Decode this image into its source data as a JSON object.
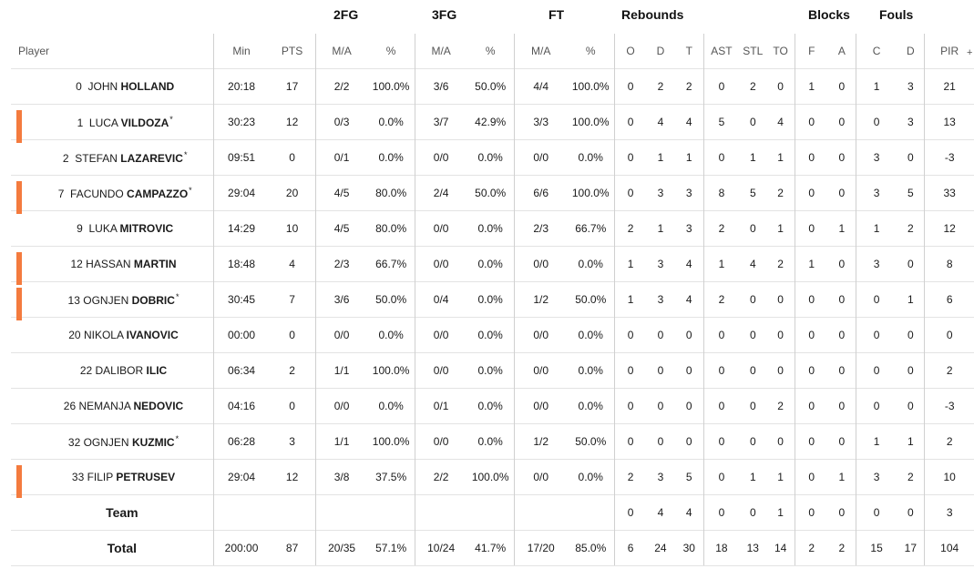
{
  "groups": [
    "2FG",
    "3FG",
    "FT",
    "Rebounds",
    "Blocks",
    "Fouls"
  ],
  "headers": {
    "player": "Player",
    "min": "Min",
    "pts": "PTS",
    "fg2_ma": "M/A",
    "fg2_pct": "%",
    "fg3_ma": "M/A",
    "fg3_pct": "%",
    "ft_ma": "M/A",
    "ft_pct": "%",
    "reb_o": "O",
    "reb_d": "D",
    "reb_t": "T",
    "ast": "AST",
    "stl": "STL",
    "to": "TO",
    "blk_f": "F",
    "blk_a": "A",
    "foul_c": "C",
    "foul_d": "D",
    "pir": "PIR",
    "more": "+"
  },
  "accent_color": "#f47b3e",
  "players": [
    {
      "num": "0",
      "first": "JOHN",
      "last": "HOLLAND",
      "star": "",
      "starter": false,
      "min": "20:18",
      "pts": "17",
      "fg2_ma": "2/2",
      "fg2_pct": "100.0%",
      "fg3_ma": "3/6",
      "fg3_pct": "50.0%",
      "ft_ma": "4/4",
      "ft_pct": "100.0%",
      "reb_o": "0",
      "reb_d": "2",
      "reb_t": "2",
      "ast": "0",
      "stl": "2",
      "to": "0",
      "blk_f": "1",
      "blk_a": "0",
      "foul_c": "1",
      "foul_d": "3",
      "pir": "21"
    },
    {
      "num": "1",
      "first": "LUCA",
      "last": "VILDOZA",
      "star": "*",
      "starter": true,
      "min": "30:23",
      "pts": "12",
      "fg2_ma": "0/3",
      "fg2_pct": "0.0%",
      "fg3_ma": "3/7",
      "fg3_pct": "42.9%",
      "ft_ma": "3/3",
      "ft_pct": "100.0%",
      "reb_o": "0",
      "reb_d": "4",
      "reb_t": "4",
      "ast": "5",
      "stl": "0",
      "to": "4",
      "blk_f": "0",
      "blk_a": "0",
      "foul_c": "0",
      "foul_d": "3",
      "pir": "13"
    },
    {
      "num": "2",
      "first": "STEFAN",
      "last": "LAZAREVIC",
      "star": "*",
      "starter": false,
      "min": "09:51",
      "pts": "0",
      "fg2_ma": "0/1",
      "fg2_pct": "0.0%",
      "fg3_ma": "0/0",
      "fg3_pct": "0.0%",
      "ft_ma": "0/0",
      "ft_pct": "0.0%",
      "reb_o": "0",
      "reb_d": "1",
      "reb_t": "1",
      "ast": "0",
      "stl": "1",
      "to": "1",
      "blk_f": "0",
      "blk_a": "0",
      "foul_c": "3",
      "foul_d": "0",
      "pir": "-3"
    },
    {
      "num": "7",
      "first": "FACUNDO",
      "last": "CAMPAZZO",
      "star": "*",
      "starter": true,
      "min": "29:04",
      "pts": "20",
      "fg2_ma": "4/5",
      "fg2_pct": "80.0%",
      "fg3_ma": "2/4",
      "fg3_pct": "50.0%",
      "ft_ma": "6/6",
      "ft_pct": "100.0%",
      "reb_o": "0",
      "reb_d": "3",
      "reb_t": "3",
      "ast": "8",
      "stl": "5",
      "to": "2",
      "blk_f": "0",
      "blk_a": "0",
      "foul_c": "3",
      "foul_d": "5",
      "pir": "33"
    },
    {
      "num": "9",
      "first": "LUKA",
      "last": "MITROVIC",
      "star": "",
      "starter": false,
      "min": "14:29",
      "pts": "10",
      "fg2_ma": "4/5",
      "fg2_pct": "80.0%",
      "fg3_ma": "0/0",
      "fg3_pct": "0.0%",
      "ft_ma": "2/3",
      "ft_pct": "66.7%",
      "reb_o": "2",
      "reb_d": "1",
      "reb_t": "3",
      "ast": "2",
      "stl": "0",
      "to": "1",
      "blk_f": "0",
      "blk_a": "1",
      "foul_c": "1",
      "foul_d": "2",
      "pir": "12"
    },
    {
      "num": "12",
      "first": "HASSAN",
      "last": "MARTIN",
      "star": "",
      "starter": true,
      "min": "18:48",
      "pts": "4",
      "fg2_ma": "2/3",
      "fg2_pct": "66.7%",
      "fg3_ma": "0/0",
      "fg3_pct": "0.0%",
      "ft_ma": "0/0",
      "ft_pct": "0.0%",
      "reb_o": "1",
      "reb_d": "3",
      "reb_t": "4",
      "ast": "1",
      "stl": "4",
      "to": "2",
      "blk_f": "1",
      "blk_a": "0",
      "foul_c": "3",
      "foul_d": "0",
      "pir": "8"
    },
    {
      "num": "13",
      "first": "OGNJEN",
      "last": "DOBRIC",
      "star": "*",
      "starter": true,
      "min": "30:45",
      "pts": "7",
      "fg2_ma": "3/6",
      "fg2_pct": "50.0%",
      "fg3_ma": "0/4",
      "fg3_pct": "0.0%",
      "ft_ma": "1/2",
      "ft_pct": "50.0%",
      "reb_o": "1",
      "reb_d": "3",
      "reb_t": "4",
      "ast": "2",
      "stl": "0",
      "to": "0",
      "blk_f": "0",
      "blk_a": "0",
      "foul_c": "0",
      "foul_d": "1",
      "pir": "6"
    },
    {
      "num": "20",
      "first": "NIKOLA",
      "last": "IVANOVIC",
      "star": "",
      "starter": false,
      "min": "00:00",
      "pts": "0",
      "fg2_ma": "0/0",
      "fg2_pct": "0.0%",
      "fg3_ma": "0/0",
      "fg3_pct": "0.0%",
      "ft_ma": "0/0",
      "ft_pct": "0.0%",
      "reb_o": "0",
      "reb_d": "0",
      "reb_t": "0",
      "ast": "0",
      "stl": "0",
      "to": "0",
      "blk_f": "0",
      "blk_a": "0",
      "foul_c": "0",
      "foul_d": "0",
      "pir": "0"
    },
    {
      "num": "22",
      "first": "DALIBOR",
      "last": "ILIC",
      "star": "",
      "starter": false,
      "min": "06:34",
      "pts": "2",
      "fg2_ma": "1/1",
      "fg2_pct": "100.0%",
      "fg3_ma": "0/0",
      "fg3_pct": "0.0%",
      "ft_ma": "0/0",
      "ft_pct": "0.0%",
      "reb_o": "0",
      "reb_d": "0",
      "reb_t": "0",
      "ast": "0",
      "stl": "0",
      "to": "0",
      "blk_f": "0",
      "blk_a": "0",
      "foul_c": "0",
      "foul_d": "0",
      "pir": "2"
    },
    {
      "num": "26",
      "first": "NEMANJA",
      "last": "NEDOVIC",
      "star": "",
      "starter": false,
      "min": "04:16",
      "pts": "0",
      "fg2_ma": "0/0",
      "fg2_pct": "0.0%",
      "fg3_ma": "0/1",
      "fg3_pct": "0.0%",
      "ft_ma": "0/0",
      "ft_pct": "0.0%",
      "reb_o": "0",
      "reb_d": "0",
      "reb_t": "0",
      "ast": "0",
      "stl": "0",
      "to": "2",
      "blk_f": "0",
      "blk_a": "0",
      "foul_c": "0",
      "foul_d": "0",
      "pir": "-3"
    },
    {
      "num": "32",
      "first": "OGNJEN",
      "last": "KUZMIC",
      "star": "*",
      "starter": false,
      "min": "06:28",
      "pts": "3",
      "fg2_ma": "1/1",
      "fg2_pct": "100.0%",
      "fg3_ma": "0/0",
      "fg3_pct": "0.0%",
      "ft_ma": "1/2",
      "ft_pct": "50.0%",
      "reb_o": "0",
      "reb_d": "0",
      "reb_t": "0",
      "ast": "0",
      "stl": "0",
      "to": "0",
      "blk_f": "0",
      "blk_a": "0",
      "foul_c": "1",
      "foul_d": "1",
      "pir": "2"
    },
    {
      "num": "33",
      "first": "FILIP",
      "last": "PETRUSEV",
      "star": "",
      "starter": true,
      "min": "29:04",
      "pts": "12",
      "fg2_ma": "3/8",
      "fg2_pct": "37.5%",
      "fg3_ma": "2/2",
      "fg3_pct": "100.0%",
      "ft_ma": "0/0",
      "ft_pct": "0.0%",
      "reb_o": "2",
      "reb_d": "3",
      "reb_t": "5",
      "ast": "0",
      "stl": "1",
      "to": "1",
      "blk_f": "0",
      "blk_a": "1",
      "foul_c": "3",
      "foul_d": "2",
      "pir": "10"
    }
  ],
  "team": {
    "label": "Team",
    "min": "",
    "pts": "",
    "fg2_ma": "",
    "fg2_pct": "",
    "fg3_ma": "",
    "fg3_pct": "",
    "ft_ma": "",
    "ft_pct": "",
    "reb_o": "0",
    "reb_d": "4",
    "reb_t": "4",
    "ast": "0",
    "stl": "0",
    "to": "1",
    "blk_f": "0",
    "blk_a": "0",
    "foul_c": "0",
    "foul_d": "0",
    "pir": "3"
  },
  "total": {
    "label": "Total",
    "min": "200:00",
    "pts": "87",
    "fg2_ma": "20/35",
    "fg2_pct": "57.1%",
    "fg3_ma": "10/24",
    "fg3_pct": "41.7%",
    "ft_ma": "17/20",
    "ft_pct": "85.0%",
    "reb_o": "6",
    "reb_d": "24",
    "reb_t": "30",
    "ast": "18",
    "stl": "13",
    "to": "14",
    "blk_f": "2",
    "blk_a": "2",
    "foul_c": "15",
    "foul_d": "17",
    "pir": "104"
  }
}
